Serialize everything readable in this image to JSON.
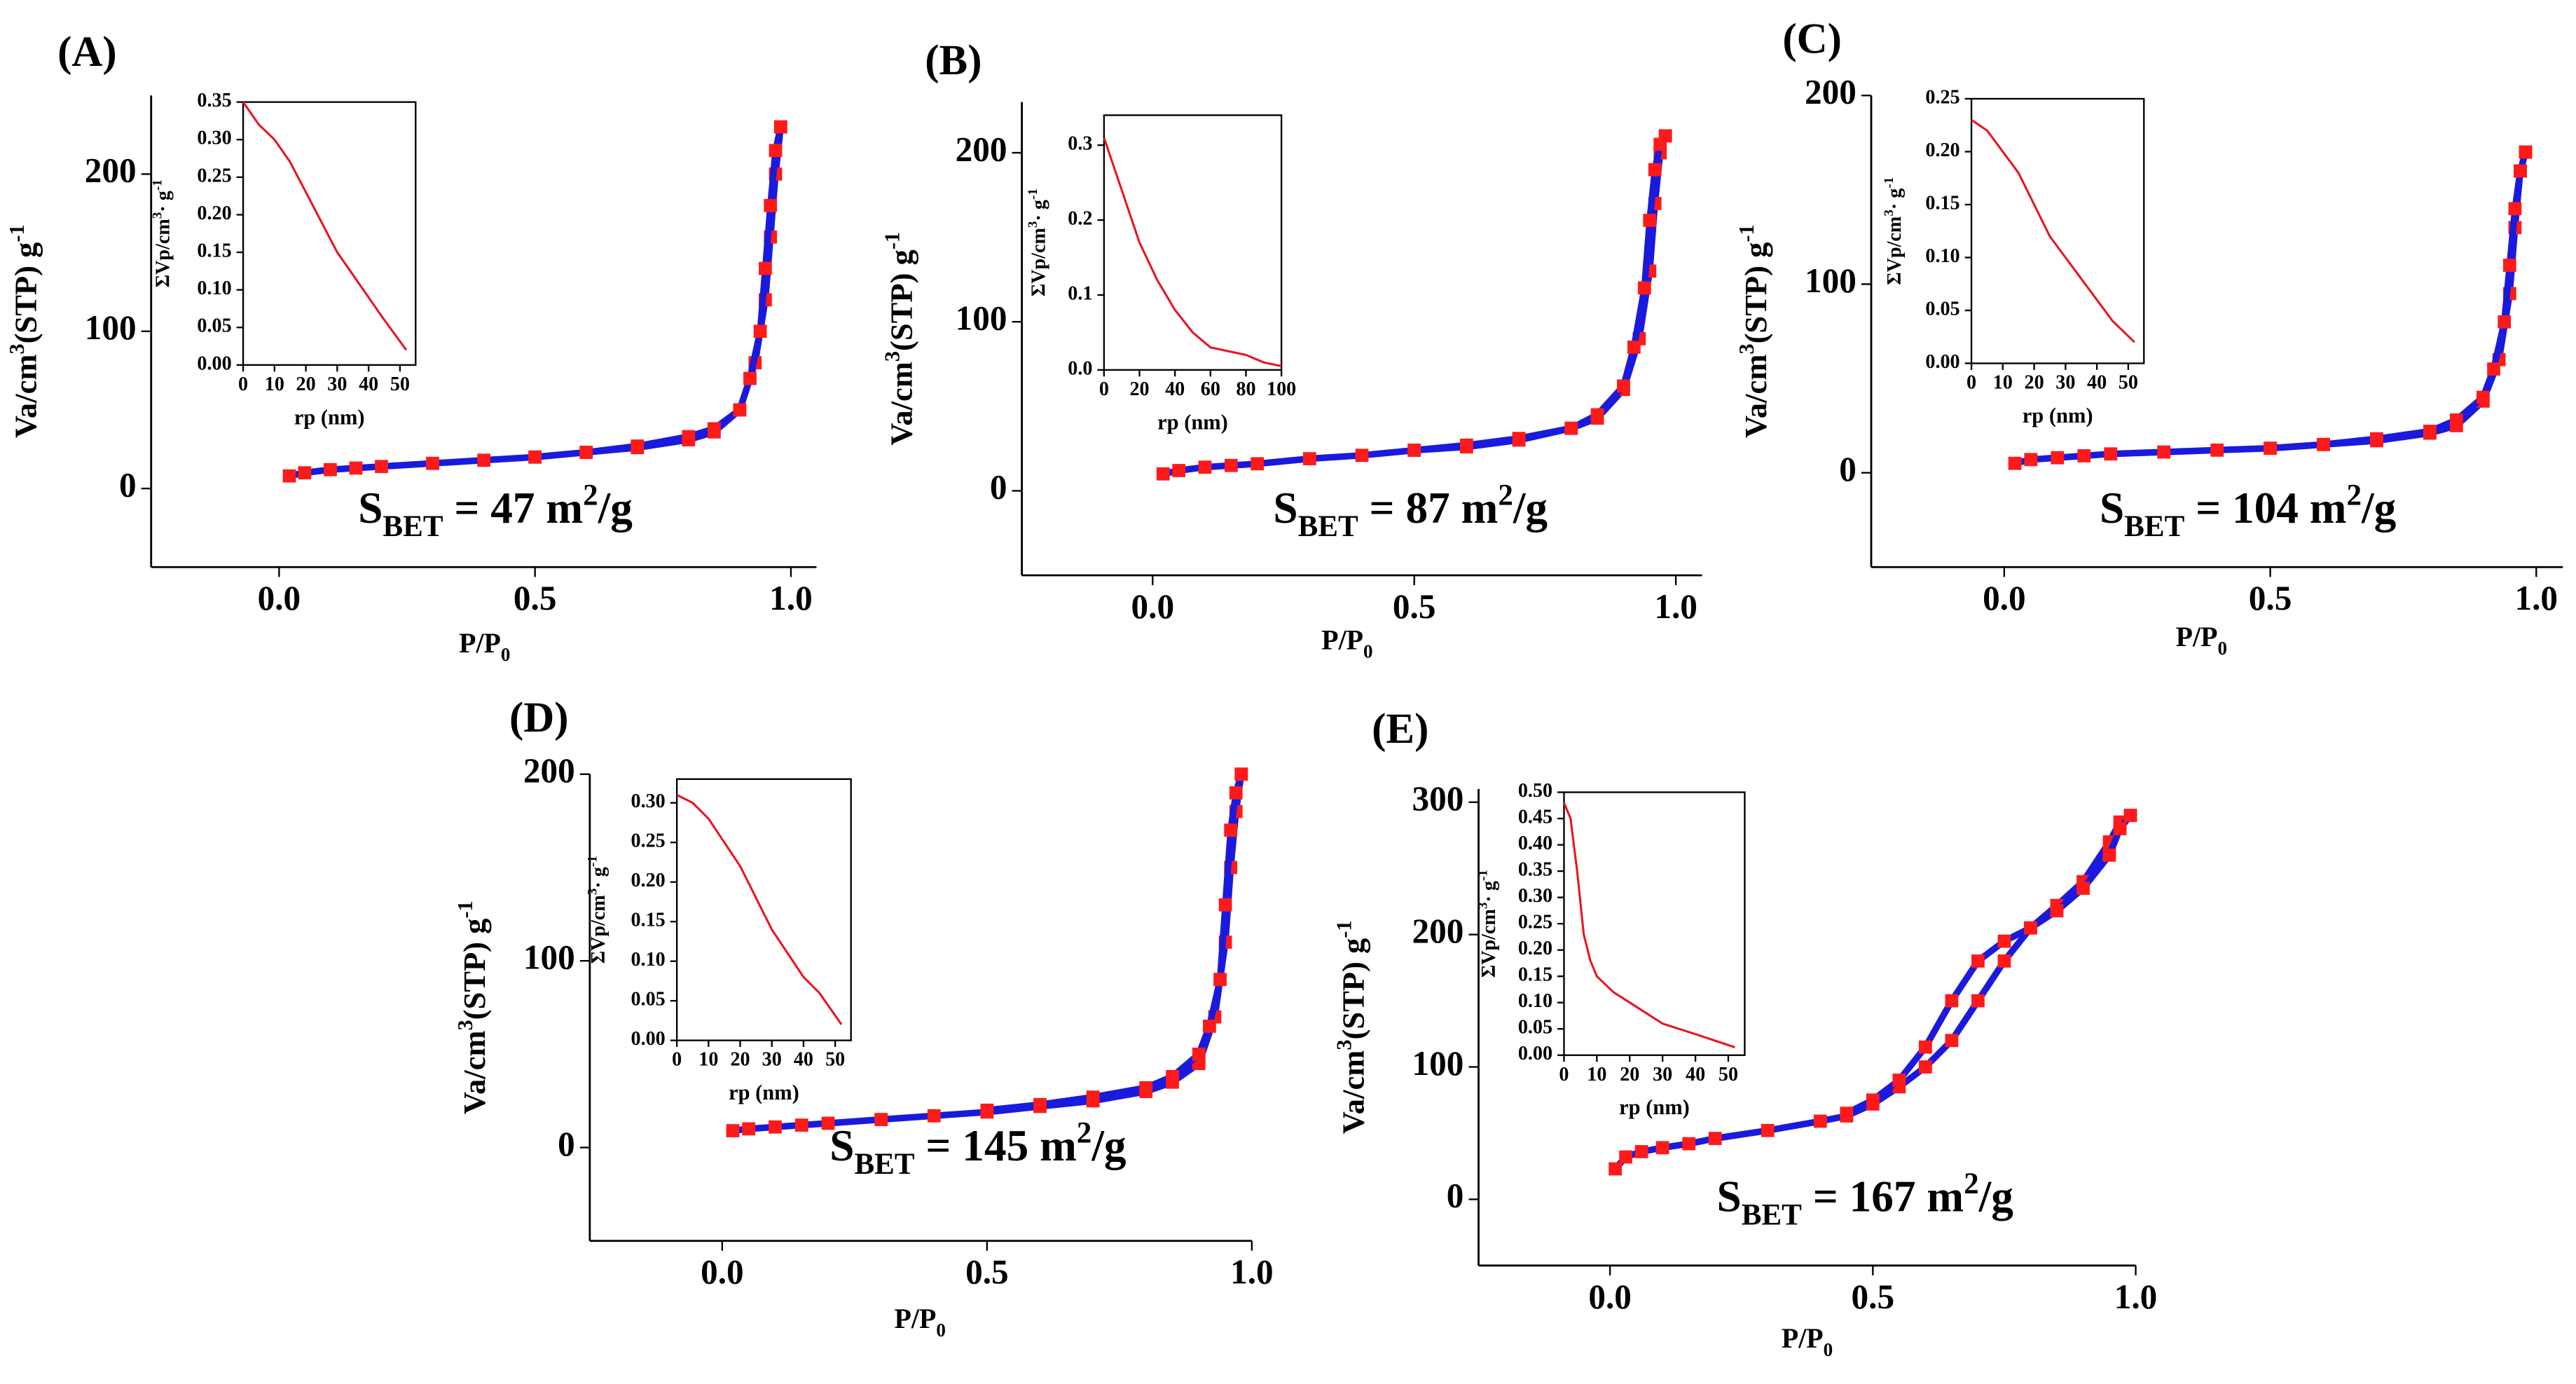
{
  "chart_data": [
    {
      "type": "line",
      "title": "(A)",
      "xlabel": [
        "P/P",
        "0"
      ],
      "ylabel": [
        "Va/cm",
        "3",
        "(STP) g",
        "-1"
      ],
      "annotation": [
        "S",
        "BET",
        " = 47 m",
        "2",
        "/g"
      ],
      "xlim": [
        -0.25,
        1.05
      ],
      "xticks": [
        {
          "value": 0,
          "label": "0.0"
        },
        0.5,
        {
          "value": 1,
          "label": "1.0"
        }
      ],
      "ylim": [
        -50,
        250
      ],
      "yticks": [
        0,
        100,
        200
      ],
      "markers": true,
      "marker_color": "#ff1a1a",
      "series": [
        {
          "color": "#1a1add",
          "x": [
            0.02,
            0.05,
            0.1,
            0.15,
            0.2,
            0.3,
            0.4,
            0.5,
            0.6,
            0.7,
            0.8,
            0.85,
            0.9,
            0.93,
            0.95,
            0.96,
            0.97,
            0.98
          ],
          "values": [
            8,
            10,
            12,
            13,
            14,
            16,
            18,
            20,
            23,
            26,
            31,
            36,
            50,
            80,
            120,
            160,
            200,
            230
          ]
        },
        {
          "color": "#1a1add",
          "x": [
            0.98,
            0.97,
            0.96,
            0.95,
            0.94,
            0.92,
            0.9,
            0.85,
            0.8,
            0.7,
            0.6,
            0.5
          ],
          "values": [
            230,
            215,
            180,
            140,
            100,
            70,
            50,
            38,
            33,
            27,
            23,
            20
          ]
        }
      ]
    },
    {
      "type": "line",
      "xlabel": [
        "rp (nm)"
      ],
      "ylabel": [
        "ΣVp/cm",
        "3",
        "· g",
        "-1"
      ],
      "xlim": [
        0,
        55
      ],
      "xticks": [
        0,
        10,
        20,
        30,
        40,
        50
      ],
      "ylim": [
        0,
        0.35
      ],
      "yticks": [
        {
          "value": 0,
          "label": "0.00"
        },
        0.05,
        {
          "value": 0.1,
          "label": "0.10"
        },
        0.15,
        {
          "value": 0.2,
          "label": "0.20"
        },
        0.25,
        {
          "value": 0.3,
          "label": "0.30"
        },
        0.35
      ],
      "series": [
        {
          "color": "#e8141e",
          "x": [
            0,
            5,
            10,
            15,
            20,
            25,
            30,
            35,
            40,
            45,
            52
          ],
          "values": [
            0.35,
            0.32,
            0.3,
            0.27,
            0.23,
            0.19,
            0.15,
            0.12,
            0.09,
            0.06,
            0.02
          ]
        }
      ]
    },
    {
      "type": "line",
      "title": "(B)",
      "xlabel": [
        "P/P",
        "0"
      ],
      "ylabel": [
        "Va/cm",
        "3",
        "(STP) g",
        "-1"
      ],
      "annotation": [
        "S",
        "BET",
        " = 87 m",
        "2",
        "/g"
      ],
      "xlim": [
        -0.25,
        1.05
      ],
      "xticks": [
        {
          "value": 0,
          "label": "0.0"
        },
        0.5,
        {
          "value": 1,
          "label": "1.0"
        }
      ],
      "ylim": [
        -50,
        230
      ],
      "yticks": [
        0,
        100,
        200
      ],
      "markers": true,
      "marker_color": "#ff1a1a",
      "series": [
        {
          "color": "#1a1add",
          "x": [
            0.02,
            0.05,
            0.1,
            0.15,
            0.2,
            0.3,
            0.4,
            0.5,
            0.6,
            0.7,
            0.8,
            0.85,
            0.9,
            0.93,
            0.95,
            0.96,
            0.97,
            0.98
          ],
          "values": [
            10,
            12,
            14,
            15,
            16,
            19,
            21,
            24,
            27,
            31,
            37,
            43,
            60,
            90,
            130,
            170,
            200,
            210
          ]
        },
        {
          "color": "#1a1add",
          "x": [
            0.98,
            0.97,
            0.96,
            0.95,
            0.94,
            0.92,
            0.9,
            0.85,
            0.8,
            0.7,
            0.6,
            0.5
          ],
          "values": [
            210,
            205,
            190,
            160,
            120,
            85,
            62,
            45,
            37,
            30,
            26,
            24
          ]
        }
      ]
    },
    {
      "type": "line",
      "xlabel": [
        "rp (nm)"
      ],
      "ylabel": [
        "ΣVp/cm",
        "3",
        "· g",
        "-1"
      ],
      "xlim": [
        0,
        100
      ],
      "xticks": [
        0,
        20,
        40,
        60,
        80,
        100
      ],
      "ylim": [
        0,
        0.34
      ],
      "yticks": [
        {
          "value": 0,
          "label": "0.0"
        },
        0.1,
        0.2,
        0.3
      ],
      "series": [
        {
          "color": "#e8141e",
          "x": [
            0,
            10,
            20,
            30,
            40,
            50,
            60,
            70,
            80,
            90,
            100
          ],
          "values": [
            0.31,
            0.24,
            0.17,
            0.12,
            0.08,
            0.05,
            0.03,
            0.025,
            0.02,
            0.01,
            0.005
          ]
        }
      ]
    },
    {
      "type": "line",
      "title": "(C)",
      "xlabel": [
        "P/P",
        "0"
      ],
      "ylabel": [
        "Va/cm",
        "3",
        "(STP) g",
        "-1"
      ],
      "annotation": [
        "S",
        "BET",
        " = 104 m",
        "2",
        "/g"
      ],
      "xlim": [
        -0.25,
        1.05
      ],
      "xticks": [
        {
          "value": 0,
          "label": "0.0"
        },
        0.5,
        {
          "value": 1,
          "label": "1.0"
        }
      ],
      "ylim": [
        -50,
        200
      ],
      "yticks": [
        0,
        100,
        200
      ],
      "markers": true,
      "marker_color": "#ff1a1a",
      "series": [
        {
          "color": "#1a1add",
          "x": [
            0.02,
            0.05,
            0.1,
            0.15,
            0.2,
            0.3,
            0.4,
            0.5,
            0.6,
            0.7,
            0.8,
            0.85,
            0.9,
            0.93,
            0.95,
            0.96,
            0.97,
            0.98
          ],
          "values": [
            5,
            7,
            8,
            9,
            10,
            11,
            12,
            13,
            15,
            17,
            21,
            25,
            38,
            60,
            95,
            130,
            160,
            170
          ]
        },
        {
          "color": "#1a1add",
          "x": [
            0.98,
            0.97,
            0.96,
            0.95,
            0.94,
            0.92,
            0.9,
            0.85,
            0.8,
            0.7,
            0.6,
            0.5
          ],
          "values": [
            170,
            160,
            140,
            110,
            80,
            55,
            40,
            28,
            22,
            18,
            15,
            13
          ]
        }
      ]
    },
    {
      "type": "line",
      "xlabel": [
        "rp (nm)"
      ],
      "ylabel": [
        "ΣVp/cm",
        "3",
        "· g",
        "-1"
      ],
      "xlim": [
        0,
        55
      ],
      "xticks": [
        0,
        10,
        20,
        30,
        40,
        50
      ],
      "ylim": [
        0,
        0.25
      ],
      "yticks": [
        {
          "value": 0,
          "label": "0.00"
        },
        0.05,
        {
          "value": 0.1,
          "label": "0.10"
        },
        0.15,
        {
          "value": 0.2,
          "label": "0.20"
        },
        0.25
      ],
      "series": [
        {
          "color": "#e8141e",
          "x": [
            0,
            5,
            10,
            15,
            20,
            25,
            30,
            35,
            40,
            45,
            52
          ],
          "values": [
            0.23,
            0.22,
            0.2,
            0.18,
            0.15,
            0.12,
            0.1,
            0.08,
            0.06,
            0.04,
            0.02
          ]
        }
      ]
    },
    {
      "type": "line",
      "title": "(D)",
      "xlabel": [
        "P/P",
        "0"
      ],
      "ylabel": [
        "Va/cm",
        "3",
        "(STP) g",
        "-1"
      ],
      "annotation": [
        "S",
        "BET",
        " = 145 m",
        "2",
        "/g"
      ],
      "xlim": [
        -0.25,
        1
      ],
      "xticks": [
        {
          "value": 0,
          "label": "0.0"
        },
        0.5,
        {
          "value": 1,
          "label": "1.0"
        }
      ],
      "ylim": [
        -50,
        200
      ],
      "yticks": [
        0,
        100,
        200
      ],
      "markers": true,
      "marker_color": "#ff1a1a",
      "series": [
        {
          "color": "#1a1add",
          "x": [
            0.02,
            0.05,
            0.1,
            0.15,
            0.2,
            0.3,
            0.4,
            0.5,
            0.6,
            0.7,
            0.8,
            0.85,
            0.9,
            0.93,
            0.95,
            0.96,
            0.97,
            0.98
          ],
          "values": [
            9,
            10,
            11,
            12,
            13,
            15,
            17,
            19,
            22,
            25,
            30,
            35,
            45,
            70,
            110,
            150,
            180,
            200
          ]
        },
        {
          "color": "#1a1add",
          "x": [
            0.98,
            0.97,
            0.96,
            0.95,
            0.94,
            0.92,
            0.9,
            0.85,
            0.8,
            0.7,
            0.6,
            0.5
          ],
          "values": [
            200,
            190,
            170,
            130,
            90,
            65,
            50,
            38,
            32,
            27,
            23,
            20
          ]
        }
      ]
    },
    {
      "type": "line",
      "xlabel": [
        "rp (nm)"
      ],
      "ylabel": [
        "ΣVp/cm",
        "3",
        "· g",
        "-1"
      ],
      "xlim": [
        0,
        55
      ],
      "xticks": [
        0,
        10,
        20,
        30,
        40,
        50
      ],
      "ylim": [
        0,
        0.33
      ],
      "yticks": [
        {
          "value": 0,
          "label": "0.00"
        },
        0.05,
        {
          "value": 0.1,
          "label": "0.10"
        },
        0.15,
        {
          "value": 0.2,
          "label": "0.20"
        },
        0.25,
        {
          "value": 0.3,
          "label": "0.30"
        }
      ],
      "series": [
        {
          "color": "#e8141e",
          "x": [
            0,
            5,
            10,
            15,
            20,
            25,
            30,
            35,
            40,
            45,
            52
          ],
          "values": [
            0.31,
            0.3,
            0.28,
            0.25,
            0.22,
            0.18,
            0.14,
            0.11,
            0.08,
            0.06,
            0.02
          ]
        }
      ]
    },
    {
      "type": "line",
      "title": "(E)",
      "xlabel": [
        "P/P",
        "0"
      ],
      "ylabel": [
        "Va/cm",
        "3",
        "(STP) g",
        "-1"
      ],
      "annotation": [
        "S",
        "BET",
        " = 167 m",
        "2",
        "/g"
      ],
      "xlim": [
        -0.25,
        1
      ],
      "xticks": [
        {
          "value": 0,
          "label": "0.0"
        },
        0.5,
        {
          "value": 1,
          "label": "1.0"
        }
      ],
      "ylim": [
        -50,
        310
      ],
      "yticks": [
        0,
        100,
        200,
        300
      ],
      "markers": true,
      "marker_color": "#ff1a1a",
      "series": [
        {
          "color": "#1a1add",
          "x": [
            0.01,
            0.03,
            0.06,
            0.1,
            0.15,
            0.2,
            0.3,
            0.4,
            0.45,
            0.5,
            0.55,
            0.6,
            0.65,
            0.7,
            0.75,
            0.8,
            0.85,
            0.9,
            0.95,
            0.97,
            0.99
          ],
          "values": [
            23,
            32,
            36,
            39,
            42,
            46,
            52,
            59,
            63,
            72,
            85,
            100,
            120,
            150,
            180,
            205,
            222,
            240,
            270,
            285,
            290
          ]
        },
        {
          "color": "#1a1add",
          "x": [
            0.99,
            0.97,
            0.95,
            0.9,
            0.85,
            0.8,
            0.75,
            0.7,
            0.65,
            0.6,
            0.55,
            0.5,
            0.45
          ],
          "values": [
            290,
            280,
            260,
            235,
            218,
            205,
            195,
            180,
            150,
            115,
            90,
            75,
            65
          ]
        }
      ]
    },
    {
      "type": "line",
      "xlabel": [
        "rp (nm)"
      ],
      "ylabel": [
        "ΣVp/cm",
        "3",
        "· g",
        "-1"
      ],
      "xlim": [
        0,
        55
      ],
      "xticks": [
        0,
        10,
        20,
        30,
        40,
        50
      ],
      "ylim": [
        0,
        0.5
      ],
      "yticks": [
        {
          "value": 0,
          "label": "0.00"
        },
        0.05,
        {
          "value": 0.1,
          "label": "0.10"
        },
        0.15,
        {
          "value": 0.2,
          "label": "0.20"
        },
        0.25,
        {
          "value": 0.3,
          "label": "0.30"
        },
        0.35,
        {
          "value": 0.4,
          "label": "0.40"
        },
        0.45,
        {
          "value": 0.5,
          "label": "0.50"
        }
      ],
      "series": [
        {
          "color": "#e8141e",
          "x": [
            0,
            2,
            4,
            6,
            8,
            10,
            15,
            20,
            25,
            30,
            40,
            52
          ],
          "values": [
            0.48,
            0.45,
            0.35,
            0.23,
            0.18,
            0.15,
            0.12,
            0.1,
            0.08,
            0.06,
            0.04,
            0.015
          ]
        }
      ]
    }
  ]
}
